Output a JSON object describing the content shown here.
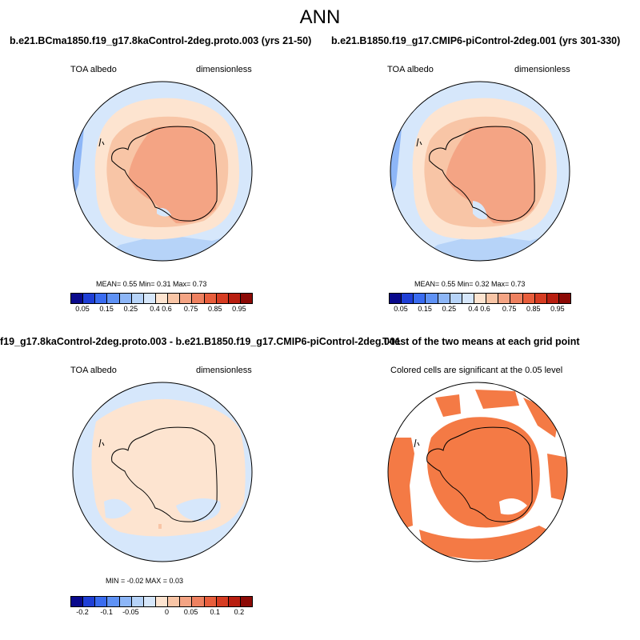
{
  "page_title": "ANN",
  "panels": [
    {
      "title": "b.e21.BCma1850.f19_g17.8kaControl-2deg.proto.003 (yrs 21-50)",
      "variable": "TOA albedo",
      "units": "dimensionless",
      "stats": "MEAN=   0.55   Min=   0.31   Max=   0.73",
      "colorbar_ticks": [
        "0.05",
        "0.15",
        "0.25",
        "0.4",
        "0.6",
        "0.75",
        "0.85",
        "0.95"
      ]
    },
    {
      "title": "b.e21.B1850.f19_g17.CMIP6-piControl-2deg.001 (yrs 301-330)",
      "variable": "TOA albedo",
      "units": "dimensionless",
      "stats": "MEAN=   0.55   Min=   0.32   Max=   0.73",
      "colorbar_ticks": [
        "0.05",
        "0.15",
        "0.25",
        "0.4",
        "0.6",
        "0.75",
        "0.85",
        "0.95"
      ]
    },
    {
      "title": "f19_g17.8kaControl-2deg.proto.003 - b.e21.B1850.f19_g17.CMIP6-piControl-2deg.001",
      "variable": "TOA albedo",
      "units": "dimensionless",
      "stats": "MIN =  -0.02  MAX =   0.03",
      "colorbar_ticks": [
        "-0.2",
        "-0.1",
        "-0.05",
        "0",
        "0.05",
        "0.1",
        "0.2"
      ]
    },
    {
      "title": "T-test of the two means at each grid point",
      "subtitle": "Colored cells are significant at the 0.05 level"
    }
  ],
  "colors": {
    "abs_scale": [
      "#0a0a8c",
      "#1f3fd6",
      "#3a6cf0",
      "#5f92f5",
      "#8db6f7",
      "#b6d3f8",
      "#d6e7fb",
      "#fde4d0",
      "#f8c5a6",
      "#f4a484",
      "#ee8160",
      "#e85e3c",
      "#d63c22",
      "#b81e10",
      "#8c0a06"
    ],
    "diff_scale": [
      "#0a0a8c",
      "#1f3fd6",
      "#3a6cf0",
      "#5f92f5",
      "#8db6f7",
      "#b6d3f8",
      "#d6e7fb",
      "#fde4d0",
      "#f8c5a6",
      "#f4a484",
      "#ee8160",
      "#e85e3c",
      "#d63c22",
      "#b81e10",
      "#8c0a06"
    ],
    "significant": "#f47a45"
  }
}
